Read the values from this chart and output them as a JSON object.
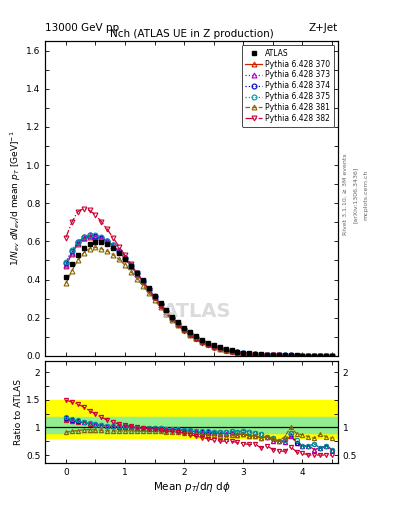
{
  "title_top": "13000 GeV pp",
  "title_right": "Z+Jet",
  "plot_title": "Nch (ATLAS UE in Z production)",
  "xlabel": "Mean $p_T$/d$\\eta$ d$\\phi$",
  "ylabel_main": "$1/N_{ev}$ $dN_{ev}$/d mean $p_T$ [GeV]$^{-1}$",
  "ylabel_ratio": "Ratio to ATLAS",
  "right_label_1": "Rivet 3.1.10, ≥ 3M events",
  "right_label_2": "[arXiv:1306.3436]",
  "right_label_3": "mcplots.cern.ch",
  "watermark": "ATLAS",
  "x_data": [
    0.0,
    0.1,
    0.2,
    0.3,
    0.4,
    0.5,
    0.6,
    0.7,
    0.8,
    0.9,
    1.0,
    1.1,
    1.2,
    1.3,
    1.4,
    1.5,
    1.6,
    1.7,
    1.8,
    1.9,
    2.0,
    2.1,
    2.2,
    2.3,
    2.4,
    2.5,
    2.6,
    2.7,
    2.8,
    2.9,
    3.0,
    3.1,
    3.2,
    3.3,
    3.4,
    3.5,
    3.6,
    3.7,
    3.8,
    3.9,
    4.0,
    4.1,
    4.2,
    4.3,
    4.4,
    4.5
  ],
  "atlas_y": [
    0.415,
    0.48,
    0.53,
    0.565,
    0.585,
    0.595,
    0.595,
    0.585,
    0.565,
    0.54,
    0.505,
    0.47,
    0.435,
    0.395,
    0.355,
    0.315,
    0.275,
    0.24,
    0.205,
    0.175,
    0.148,
    0.124,
    0.103,
    0.085,
    0.069,
    0.056,
    0.045,
    0.036,
    0.028,
    0.022,
    0.017,
    0.013,
    0.01,
    0.008,
    0.006,
    0.005,
    0.004,
    0.003,
    0.002,
    0.0018,
    0.0015,
    0.0012,
    0.001,
    0.0008,
    0.0006,
    0.0005
  ],
  "p370_y": [
    0.47,
    0.535,
    0.585,
    0.615,
    0.625,
    0.625,
    0.615,
    0.6,
    0.575,
    0.545,
    0.51,
    0.47,
    0.43,
    0.39,
    0.348,
    0.308,
    0.268,
    0.232,
    0.198,
    0.167,
    0.14,
    0.116,
    0.095,
    0.077,
    0.062,
    0.05,
    0.04,
    0.032,
    0.025,
    0.019,
    0.015,
    0.011,
    0.0085,
    0.0065,
    0.005,
    0.0038,
    0.003,
    0.0022,
    0.0017,
    0.0013,
    0.001,
    0.0008,
    0.0006,
    0.0005,
    0.0004,
    0.0003
  ],
  "p373_y": [
    0.475,
    0.54,
    0.59,
    0.618,
    0.628,
    0.628,
    0.618,
    0.602,
    0.578,
    0.547,
    0.511,
    0.471,
    0.431,
    0.39,
    0.349,
    0.309,
    0.269,
    0.232,
    0.198,
    0.167,
    0.14,
    0.116,
    0.095,
    0.077,
    0.062,
    0.05,
    0.04,
    0.032,
    0.025,
    0.019,
    0.015,
    0.011,
    0.0085,
    0.0065,
    0.005,
    0.0038,
    0.003,
    0.0022,
    0.0017,
    0.0013,
    0.001,
    0.0008,
    0.0006,
    0.0005,
    0.0004,
    0.0003
  ],
  "p374_y": [
    0.485,
    0.548,
    0.595,
    0.622,
    0.632,
    0.63,
    0.62,
    0.603,
    0.579,
    0.549,
    0.513,
    0.473,
    0.432,
    0.391,
    0.35,
    0.31,
    0.27,
    0.233,
    0.199,
    0.168,
    0.141,
    0.117,
    0.096,
    0.078,
    0.063,
    0.051,
    0.041,
    0.033,
    0.026,
    0.02,
    0.015,
    0.012,
    0.009,
    0.007,
    0.005,
    0.004,
    0.003,
    0.0023,
    0.0018,
    0.0013,
    0.001,
    0.0008,
    0.0007,
    0.0005,
    0.0004,
    0.0003
  ],
  "p375_y": [
    0.49,
    0.553,
    0.598,
    0.624,
    0.633,
    0.631,
    0.621,
    0.604,
    0.58,
    0.55,
    0.514,
    0.474,
    0.433,
    0.392,
    0.351,
    0.311,
    0.271,
    0.234,
    0.2,
    0.169,
    0.141,
    0.117,
    0.097,
    0.079,
    0.064,
    0.051,
    0.041,
    0.033,
    0.026,
    0.02,
    0.016,
    0.012,
    0.009,
    0.007,
    0.005,
    0.004,
    0.003,
    0.0023,
    0.0018,
    0.0014,
    0.001,
    0.0008,
    0.0007,
    0.0005,
    0.0004,
    0.0003
  ],
  "p381_y": [
    0.38,
    0.445,
    0.5,
    0.54,
    0.562,
    0.568,
    0.562,
    0.549,
    0.53,
    0.505,
    0.475,
    0.441,
    0.405,
    0.368,
    0.33,
    0.292,
    0.255,
    0.221,
    0.189,
    0.16,
    0.134,
    0.111,
    0.091,
    0.074,
    0.06,
    0.048,
    0.038,
    0.03,
    0.024,
    0.019,
    0.015,
    0.011,
    0.0085,
    0.0065,
    0.005,
    0.004,
    0.003,
    0.0025,
    0.002,
    0.0016,
    0.0013,
    0.001,
    0.0008,
    0.0007,
    0.0005,
    0.0004
  ],
  "p382_y": [
    0.62,
    0.7,
    0.755,
    0.772,
    0.762,
    0.738,
    0.703,
    0.663,
    0.618,
    0.572,
    0.526,
    0.48,
    0.435,
    0.39,
    0.346,
    0.303,
    0.262,
    0.225,
    0.191,
    0.16,
    0.132,
    0.108,
    0.087,
    0.069,
    0.055,
    0.043,
    0.034,
    0.027,
    0.021,
    0.016,
    0.012,
    0.009,
    0.007,
    0.005,
    0.004,
    0.003,
    0.0023,
    0.0017,
    0.0013,
    0.001,
    0.0008,
    0.0006,
    0.0005,
    0.0004,
    0.0003,
    0.00025
  ],
  "ratio_370": [
    1.13,
    1.11,
    1.1,
    1.09,
    1.068,
    1.05,
    1.034,
    1.026,
    1.018,
    1.009,
    1.01,
    1.0,
    0.989,
    0.987,
    0.979,
    0.978,
    0.975,
    0.967,
    0.966,
    0.954,
    0.946,
    0.935,
    0.922,
    0.906,
    0.899,
    0.893,
    0.889,
    0.889,
    0.893,
    0.864,
    0.882,
    0.846,
    0.85,
    0.813,
    0.833,
    0.76,
    0.75,
    0.733,
    0.85,
    0.722,
    0.667,
    0.667,
    0.6,
    0.625,
    0.667,
    0.6
  ],
  "ratio_373": [
    1.144,
    1.125,
    1.113,
    1.093,
    1.074,
    1.055,
    1.038,
    1.029,
    1.023,
    1.013,
    1.012,
    1.002,
    0.991,
    0.987,
    0.983,
    0.981,
    0.978,
    0.967,
    0.966,
    0.954,
    0.946,
    0.935,
    0.922,
    0.906,
    0.899,
    0.893,
    0.889,
    0.889,
    0.893,
    0.864,
    0.882,
    0.846,
    0.85,
    0.813,
    0.833,
    0.76,
    0.75,
    0.733,
    0.85,
    0.722,
    0.667,
    0.667,
    0.6,
    0.625,
    0.667,
    0.6
  ],
  "ratio_374": [
    1.168,
    1.142,
    1.123,
    1.101,
    1.081,
    1.059,
    1.042,
    1.031,
    1.025,
    1.018,
    1.016,
    1.006,
    0.993,
    0.989,
    0.986,
    0.984,
    0.982,
    0.971,
    0.971,
    0.96,
    0.953,
    0.944,
    0.932,
    0.918,
    0.913,
    0.911,
    0.911,
    0.917,
    0.929,
    0.909,
    0.941,
    0.923,
    0.9,
    0.875,
    0.833,
    0.8,
    0.75,
    0.767,
    0.9,
    0.722,
    0.667,
    0.667,
    0.7,
    0.625,
    0.667,
    0.6
  ],
  "ratio_375": [
    1.181,
    1.152,
    1.13,
    1.104,
    1.082,
    1.061,
    1.044,
    1.033,
    1.026,
    1.019,
    1.018,
    1.008,
    0.996,
    0.992,
    0.989,
    0.987,
    0.985,
    0.975,
    0.976,
    0.966,
    0.953,
    0.944,
    0.942,
    0.929,
    0.928,
    0.911,
    0.911,
    0.917,
    0.929,
    0.909,
    0.941,
    0.923,
    0.9,
    0.875,
    0.833,
    0.8,
    0.75,
    0.767,
    0.9,
    0.778,
    0.667,
    0.667,
    0.7,
    0.625,
    0.667,
    0.6
  ],
  "ratio_381": [
    0.915,
    0.927,
    0.943,
    0.956,
    0.961,
    0.955,
    0.945,
    0.939,
    0.938,
    0.935,
    0.94,
    0.938,
    0.931,
    0.932,
    0.93,
    0.927,
    0.927,
    0.921,
    0.922,
    0.914,
    0.905,
    0.895,
    0.883,
    0.871,
    0.87,
    0.857,
    0.844,
    0.833,
    0.857,
    0.864,
    0.882,
    0.846,
    0.85,
    0.813,
    0.833,
    0.8,
    0.75,
    0.833,
    1.0,
    0.889,
    0.867,
    0.833,
    0.8,
    0.875,
    0.833,
    0.8
  ],
  "ratio_382": [
    1.494,
    1.458,
    1.425,
    1.366,
    1.303,
    1.24,
    1.183,
    1.134,
    1.093,
    1.059,
    1.041,
    1.021,
    0.999,
    0.987,
    0.975,
    0.962,
    0.953,
    0.938,
    0.932,
    0.914,
    0.892,
    0.871,
    0.845,
    0.812,
    0.797,
    0.768,
    0.756,
    0.75,
    0.75,
    0.727,
    0.706,
    0.692,
    0.7,
    0.625,
    0.667,
    0.6,
    0.575,
    0.567,
    0.65,
    0.556,
    0.533,
    0.5,
    0.5,
    0.5,
    0.5,
    0.5
  ],
  "color_370": "#cc2200",
  "color_373": "#aa00cc",
  "color_374": "#0000cc",
  "color_375": "#009999",
  "color_381": "#886600",
  "color_382": "#cc0033",
  "ylim_main": [
    0.0,
    1.65
  ],
  "ylim_ratio": [
    0.35,
    2.2
  ],
  "xlim": [
    -0.35,
    4.6
  ],
  "band_yellow_lo": 0.8,
  "band_yellow_hi": 1.5,
  "band_green_lo": 0.9,
  "band_green_hi": 1.18
}
